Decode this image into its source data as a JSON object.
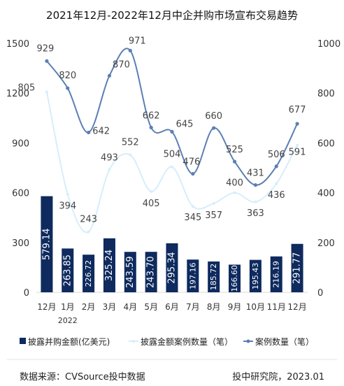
{
  "source": {
    "left_text": "数据来源：CVSource投中数据",
    "right_text": "投中研究院，2023.01"
  },
  "chart_data": {
    "type": "bar",
    "title": "2021年12月-2022年12月中企并购市场宣布交易趋势",
    "categories": [
      "12月",
      "1月",
      "2月",
      "3月",
      "4月",
      "5月",
      "6月",
      "7月",
      "8月",
      "9月",
      "10月",
      "11月",
      "12月"
    ],
    "year_label": "2022",
    "y_left": {
      "ticks": [
        0,
        300,
        600,
        900,
        1200,
        1500
      ],
      "lim": [
        0,
        1500
      ]
    },
    "y_right": {
      "ticks": [
        0,
        200,
        400,
        600,
        800,
        1000
      ],
      "lim": [
        0,
        1000
      ]
    },
    "series": [
      {
        "name": "披露并购金额(亿美元)",
        "type": "bar",
        "axis": "left",
        "color": "#0e2a5e",
        "values": [
          579.14,
          263.85,
          226.72,
          325.24,
          243.59,
          243.7,
          295.34,
          197.16,
          185.72,
          166.6,
          195.43,
          216.19,
          291.77
        ],
        "labels": [
          "579.14",
          "263.85",
          "226.72",
          "325.24",
          "243.59",
          "243.70",
          "295.34",
          "197.16",
          "185.72",
          "166.60",
          "195.43",
          "216.19",
          "291.77"
        ]
      },
      {
        "name": "披露金额案例数量（笔）",
        "type": "line",
        "axis": "right",
        "color": "#d6eefb",
        "values": [
          805,
          394,
          243,
          493,
          552,
          405,
          504,
          345,
          357,
          400,
          363,
          436,
          591
        ],
        "labels": [
          "805",
          "394",
          "243",
          "493",
          "552",
          "405",
          "504",
          "345",
          "357",
          "400",
          "363",
          "436",
          "591"
        ]
      },
      {
        "name": "案例数量（笔）",
        "type": "line",
        "axis": "right",
        "color": "#5b7fb3",
        "values": [
          929,
          820,
          642,
          870,
          971,
          662,
          645,
          476,
          660,
          525,
          431,
          506,
          677
        ],
        "labels": [
          "929",
          "820",
          "642",
          "870",
          "971",
          "662",
          "645",
          "476",
          "660",
          "525",
          "431",
          "506",
          "677"
        ]
      }
    ],
    "legend_position": "bottom",
    "grid": false
  }
}
